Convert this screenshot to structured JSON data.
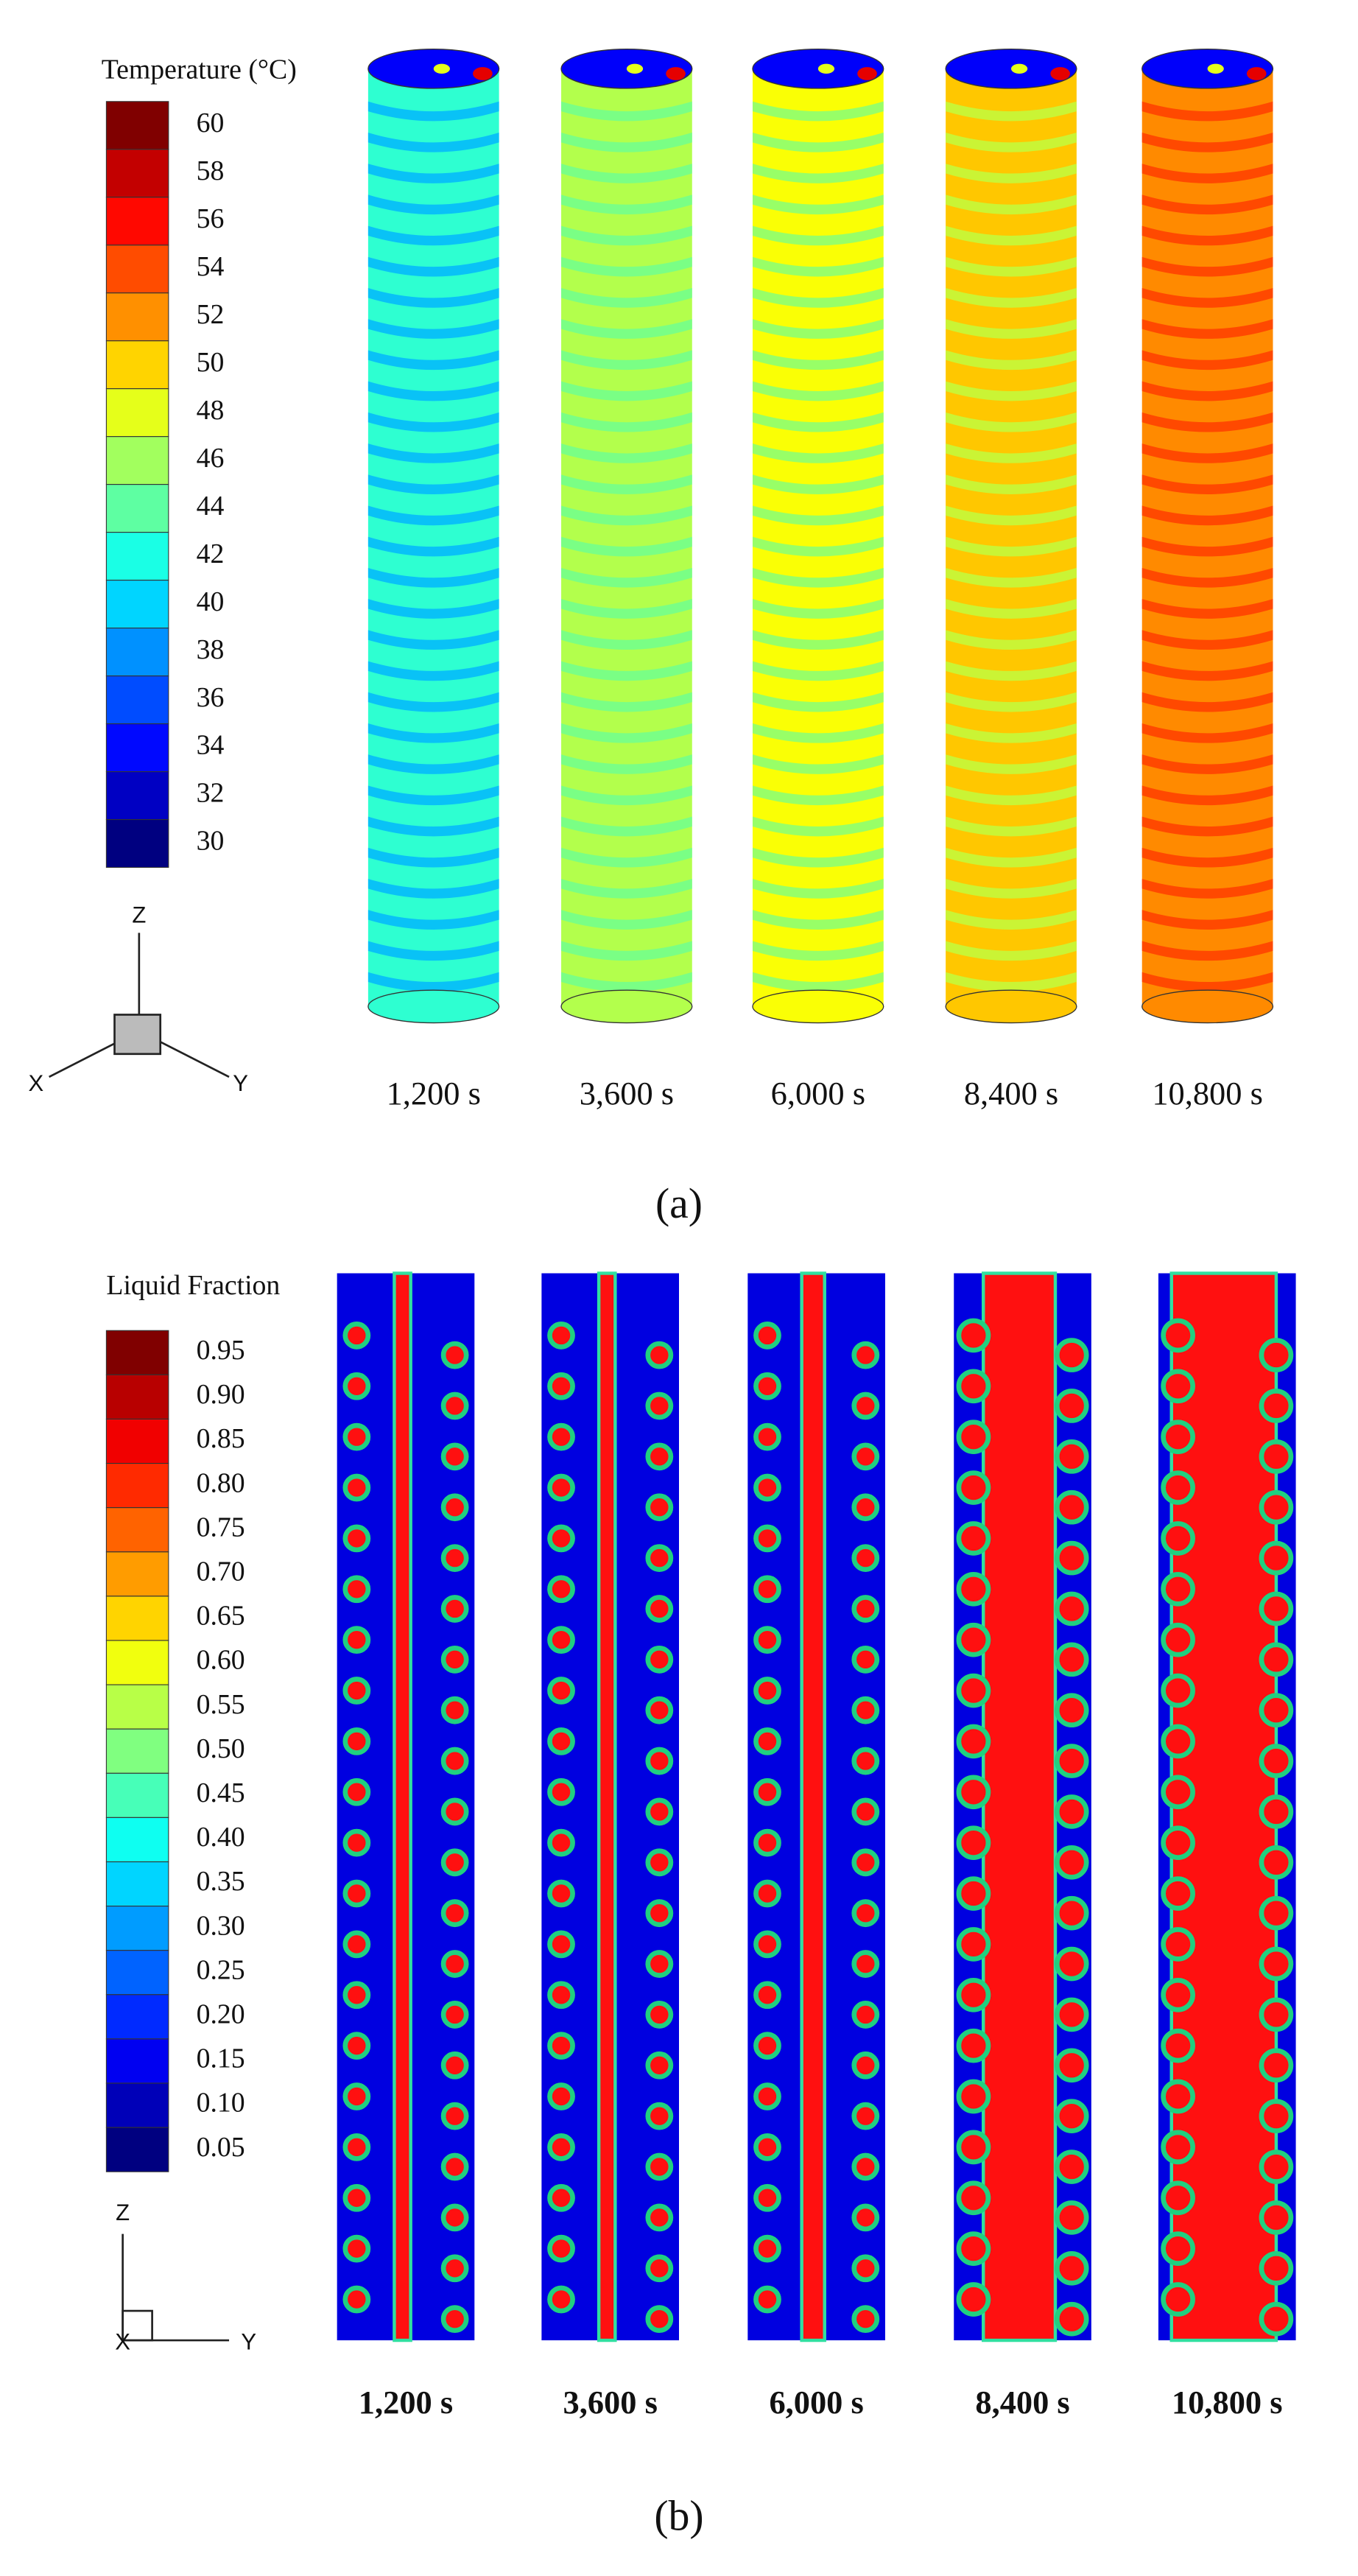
{
  "panel_a": {
    "legend_title": "Temperature (°C)",
    "legend_labels": [
      "60",
      "58",
      "56",
      "54",
      "52",
      "50",
      "48",
      "46",
      "44",
      "42",
      "40",
      "38",
      "36",
      "34",
      "32",
      "30"
    ],
    "axes": [
      "Z",
      "X",
      "Y"
    ],
    "times": [
      "1,200 s",
      "3,600 s",
      "6,000 s",
      "8,400 s",
      "10,800 s"
    ],
    "label": "(a)"
  },
  "panel_b": {
    "legend_title": "Liquid Fraction",
    "legend_labels": [
      "0.95",
      "0.90",
      "0.85",
      "0.80",
      "0.75",
      "0.70",
      "0.65",
      "0.60",
      "0.55",
      "0.50",
      "0.45",
      "0.40",
      "0.35",
      "0.30",
      "0.25",
      "0.20",
      "0.15",
      "0.10",
      "0.05"
    ],
    "axes": [
      "Z",
      "X",
      "Y"
    ],
    "times": [
      "1,200 s",
      "3,600 s",
      "6,000 s",
      "8,400 s",
      "10,800 s"
    ],
    "label": "(b)"
  }
}
